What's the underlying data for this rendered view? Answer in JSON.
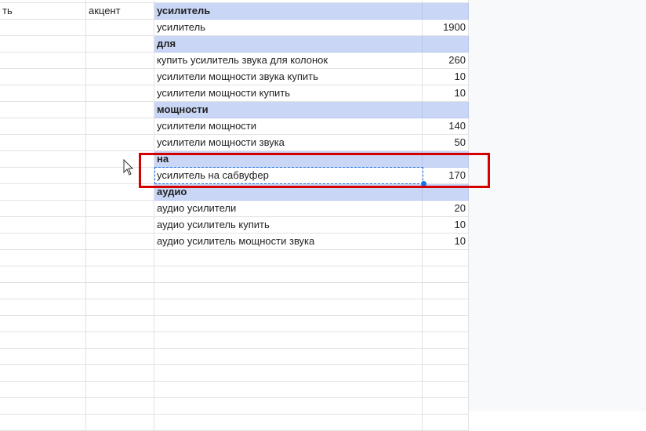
{
  "column_a_partial": "ть",
  "column_b_label": "акцент",
  "rows": [
    {
      "type": "header",
      "keyword": "усилитель",
      "count": ""
    },
    {
      "type": "item",
      "keyword": "усилитель",
      "count": "1900"
    },
    {
      "type": "header",
      "keyword": "для",
      "count": ""
    },
    {
      "type": "item",
      "keyword": "купить усилитель звука для колонок",
      "count": "260"
    },
    {
      "type": "item",
      "keyword": "усилители мощности звука купить",
      "count": "10"
    },
    {
      "type": "item",
      "keyword": "усилители мощности купить",
      "count": "10"
    },
    {
      "type": "header",
      "keyword": "мощности",
      "count": ""
    },
    {
      "type": "item",
      "keyword": "усилители мощности",
      "count": "140"
    },
    {
      "type": "item",
      "keyword": "усилители мощности звука",
      "count": "50"
    },
    {
      "type": "header",
      "keyword": "на",
      "count": ""
    },
    {
      "type": "item",
      "keyword": "усилитель на сабвуфер",
      "count": "170",
      "selected": true
    },
    {
      "type": "header",
      "keyword": "аудио",
      "count": ""
    },
    {
      "type": "item",
      "keyword": "аудио усилители",
      "count": "20"
    },
    {
      "type": "item",
      "keyword": "аудио усилитель купить",
      "count": "10"
    },
    {
      "type": "item",
      "keyword": "аудио усилитель мощности звука",
      "count": "10"
    }
  ],
  "colors": {
    "header_fill": "#c9d6f5",
    "selection": "#1a73e8",
    "highlight_box": "#d40000"
  }
}
